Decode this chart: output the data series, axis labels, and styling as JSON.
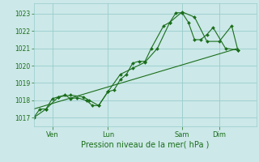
{
  "background_color": "#cce8e8",
  "grid_color": "#99cccc",
  "line_color": "#1a6e1a",
  "marker_color": "#1a6e1a",
  "xlabel": "Pression niveau de la mer( hPa )",
  "ylim": [
    1016.5,
    1023.6
  ],
  "yticks": [
    1017,
    1018,
    1019,
    1020,
    1021,
    1022,
    1023
  ],
  "xtick_labels": [
    "Ven",
    "Lun",
    "Sam",
    "Dim"
  ],
  "xtick_positions": [
    6,
    24,
    48,
    60
  ],
  "xlim": [
    0,
    72
  ],
  "series1": [
    [
      0,
      1017.0
    ],
    [
      2,
      1017.5
    ],
    [
      4,
      1017.5
    ],
    [
      6,
      1018.1
    ],
    [
      8,
      1018.2
    ],
    [
      10,
      1018.3
    ],
    [
      12,
      1018.1
    ],
    [
      14,
      1018.15
    ],
    [
      17,
      1018.0
    ],
    [
      19,
      1017.7
    ],
    [
      21,
      1017.7
    ],
    [
      24,
      1018.5
    ],
    [
      26,
      1018.6
    ],
    [
      28,
      1019.2
    ],
    [
      30,
      1019.5
    ],
    [
      32,
      1020.15
    ],
    [
      34,
      1020.25
    ],
    [
      36,
      1020.25
    ],
    [
      38,
      1021.0
    ],
    [
      42,
      1022.3
    ],
    [
      44,
      1022.5
    ],
    [
      46,
      1023.05
    ],
    [
      48,
      1023.05
    ],
    [
      50,
      1022.5
    ],
    [
      52,
      1021.5
    ],
    [
      54,
      1021.5
    ],
    [
      56,
      1021.8
    ],
    [
      58,
      1022.2
    ],
    [
      62,
      1021.0
    ],
    [
      66,
      1020.9
    ]
  ],
  "series2": [
    [
      0,
      1017.0
    ],
    [
      4,
      1017.5
    ],
    [
      8,
      1018.2
    ],
    [
      12,
      1018.3
    ],
    [
      16,
      1018.2
    ],
    [
      18,
      1018.0
    ],
    [
      21,
      1017.7
    ],
    [
      24,
      1018.5
    ],
    [
      28,
      1019.5
    ],
    [
      32,
      1019.85
    ],
    [
      36,
      1020.2
    ],
    [
      40,
      1021.0
    ],
    [
      44,
      1022.5
    ],
    [
      48,
      1023.1
    ],
    [
      52,
      1022.8
    ],
    [
      56,
      1021.4
    ],
    [
      60,
      1021.4
    ],
    [
      64,
      1022.3
    ],
    [
      66,
      1020.9
    ]
  ],
  "series3_linear": [
    [
      0,
      1017.5
    ],
    [
      66,
      1021.0
    ]
  ]
}
